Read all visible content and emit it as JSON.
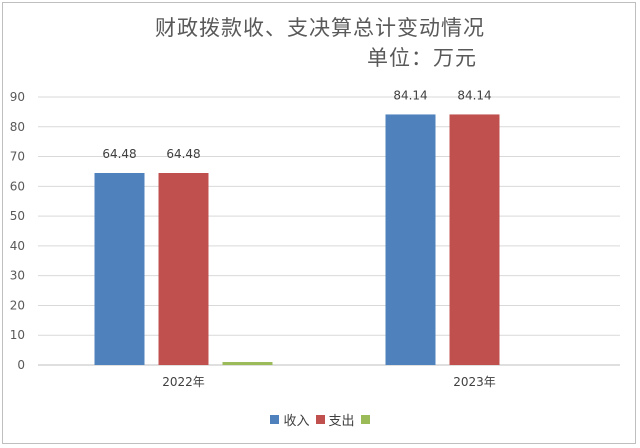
{
  "chart_data": {
    "type": "bar",
    "title": "财政拨款收、支决算总计变动情况",
    "subtitle": "单位：万元",
    "categories": [
      "2022年",
      "2023年"
    ],
    "series": [
      {
        "name": "收入",
        "values": [
          64.48,
          84.14
        ],
        "color": "#4f81bd"
      },
      {
        "name": "支出",
        "values": [
          64.48,
          84.14
        ],
        "color": "#c0504d"
      },
      {
        "name": "",
        "values": [
          1,
          0
        ],
        "color": "#9bbb59"
      }
    ],
    "data_labels": [
      [
        "64.48",
        "84.14"
      ],
      [
        "64.48",
        "84.14"
      ],
      [
        "",
        ""
      ]
    ],
    "ylim": [
      0,
      90
    ],
    "yticks": [
      0,
      10,
      20,
      30,
      40,
      50,
      60,
      70,
      80,
      90
    ],
    "grid": true,
    "legend": "bottom"
  }
}
